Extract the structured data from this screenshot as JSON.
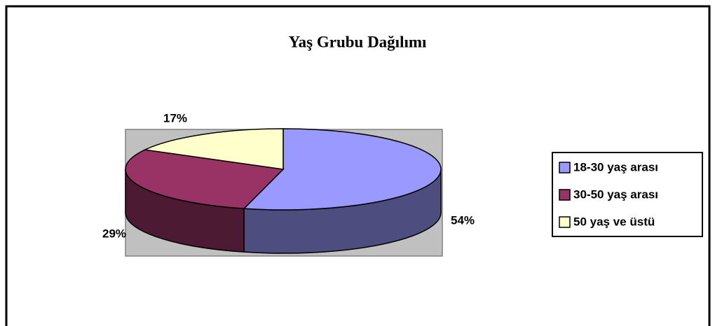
{
  "chart_data": {
    "type": "pie",
    "title": "Yaş Grubu Dağılımı",
    "categories": [
      "18-30 yaş arası",
      "30-50 yaş arası",
      "50 yaş ve üstü"
    ],
    "values": [
      54,
      29,
      17
    ],
    "value_labels": [
      "54%",
      "29%",
      "17%"
    ],
    "colors": [
      "#9999ff",
      "#993366",
      "#ffffcc"
    ],
    "legend": "right"
  }
}
